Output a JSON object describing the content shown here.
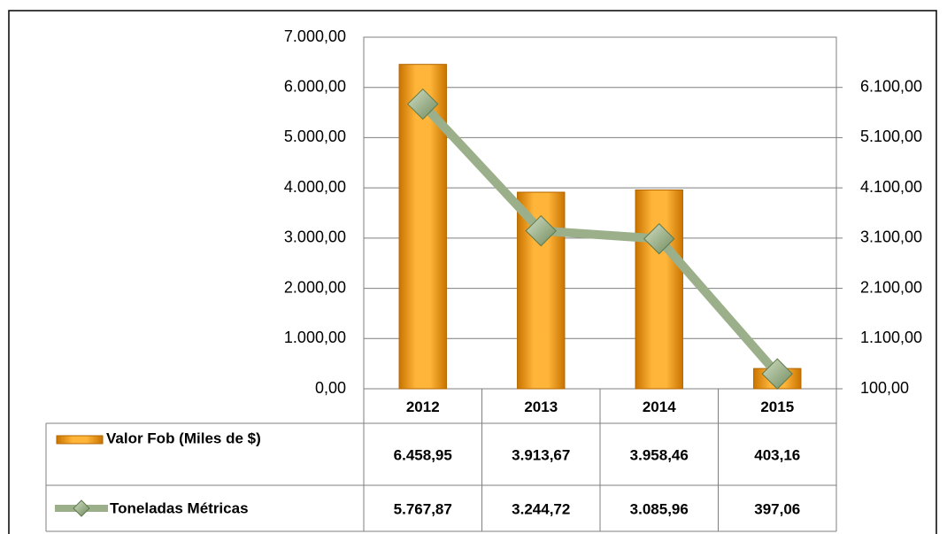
{
  "chart_data": {
    "type": "bar_line",
    "categories": [
      "2012",
      "2013",
      "2014",
      "2015"
    ],
    "series": [
      {
        "name": "Valor Fob (Miles de $)",
        "type": "bar",
        "color": "#f7a21b",
        "values": [
          6458.95,
          3913.67,
          3958.46,
          403.16
        ],
        "value_labels": [
          "6.458,95",
          "3.913,67",
          "3.958,46",
          "403,16"
        ]
      },
      {
        "name": "Toneladas Métricas",
        "type": "line",
        "axis": "y2",
        "color": "#9bb08a",
        "values": [
          5767.87,
          3244.72,
          3085.96,
          397.06
        ],
        "value_labels": [
          "5.767,87",
          "3.244,72",
          "3.085,96",
          "397,06"
        ]
      }
    ],
    "ylim": [
      0,
      7000
    ],
    "yticks": [
      {
        "value": 0,
        "label": "0,00"
      },
      {
        "value": 1000,
        "label": "1.000,00"
      },
      {
        "value": 2000,
        "label": "2.000,00"
      },
      {
        "value": 3000,
        "label": "3.000,00"
      },
      {
        "value": 4000,
        "label": "4.000,00"
      },
      {
        "value": 5000,
        "label": "5.000,00"
      },
      {
        "value": 6000,
        "label": "6.000,00"
      },
      {
        "value": 7000,
        "label": "7.000,00"
      }
    ],
    "y2lim": [
      100,
      7100
    ],
    "y2ticks": [
      {
        "value": 100,
        "label": "100,00"
      },
      {
        "value": 1100,
        "label": "1.100,00"
      },
      {
        "value": 2100,
        "label": "2.100,00"
      },
      {
        "value": 3100,
        "label": "3.100,00"
      },
      {
        "value": 4100,
        "label": "4.100,00"
      },
      {
        "value": 5100,
        "label": "5.100,00"
      },
      {
        "value": 6100,
        "label": "6.100,00"
      }
    ],
    "grid": true
  }
}
